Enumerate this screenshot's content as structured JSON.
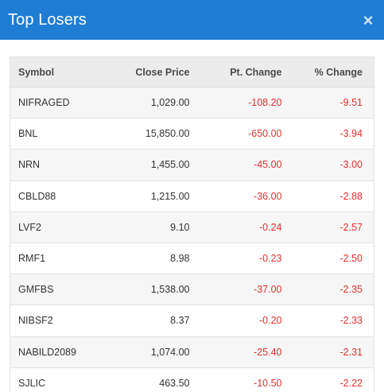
{
  "modal": {
    "title": "Top Losers",
    "close_icon": "×"
  },
  "table": {
    "headers": {
      "symbol": "Symbol",
      "close_price": "Close Price",
      "pt_change": "Pt. Change",
      "pct_change": "% Change"
    },
    "rows": [
      {
        "symbol": "NIFRAGED",
        "close_price": "1,029.00",
        "pt_change": "-108.20",
        "pct_change": "-9.51"
      },
      {
        "symbol": "BNL",
        "close_price": "15,850.00",
        "pt_change": "-650.00",
        "pct_change": "-3.94"
      },
      {
        "symbol": "NRN",
        "close_price": "1,455.00",
        "pt_change": "-45.00",
        "pct_change": "-3.00"
      },
      {
        "symbol": "CBLD88",
        "close_price": "1,215.00",
        "pt_change": "-36.00",
        "pct_change": "-2.88"
      },
      {
        "symbol": "LVF2",
        "close_price": "9.10",
        "pt_change": "-0.24",
        "pct_change": "-2.57"
      },
      {
        "symbol": "RMF1",
        "close_price": "8.98",
        "pt_change": "-0.23",
        "pct_change": "-2.50"
      },
      {
        "symbol": "GMFBS",
        "close_price": "1,538.00",
        "pt_change": "-37.00",
        "pct_change": "-2.35"
      },
      {
        "symbol": "NIBSF2",
        "close_price": "8.37",
        "pt_change": "-0.20",
        "pct_change": "-2.33"
      },
      {
        "symbol": "NABILD2089",
        "close_price": "1,074.00",
        "pt_change": "-25.40",
        "pct_change": "-2.31"
      },
      {
        "symbol": "SJLIC",
        "close_price": "463.50",
        "pt_change": "-10.50",
        "pct_change": "-2.22"
      }
    ]
  },
  "colors": {
    "header_bg": "#1f7dd4",
    "negative": "#e0312f"
  }
}
